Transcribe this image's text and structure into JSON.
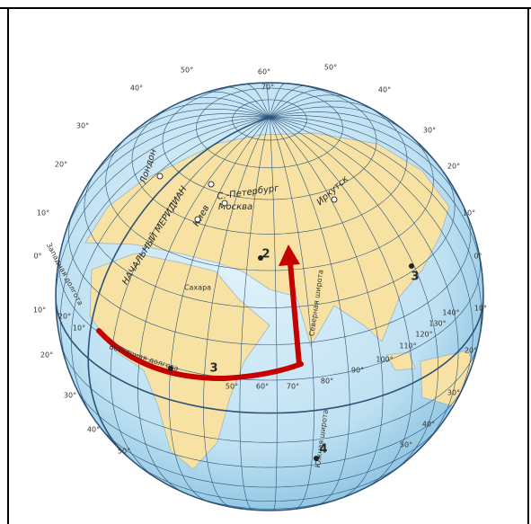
{
  "map": {
    "cities": [
      "Лондон",
      "С.-Петербург",
      "Москва",
      "Киев",
      "Иркутск"
    ],
    "meridian_label": "НАЧАЛЬНЫЙ МЕРИДИАН",
    "region_labels": [
      "Западная долгота",
      "Восточная долгота",
      "Северная широта",
      "Южная широта",
      "Сахара"
    ],
    "points": [
      "2",
      "3",
      "3",
      "4"
    ],
    "degree_labels": [
      "40°",
      "30°",
      "20°",
      "10°",
      "0°",
      "10°",
      "20°",
      "30°",
      "40°",
      "50°",
      "40°",
      "30°",
      "20°",
      "10°",
      "0°",
      "10°",
      "20°",
      "30°",
      "40°",
      "50°",
      "50°",
      "60°",
      "50°",
      "70°",
      "20°",
      "10°",
      "50°",
      "60°",
      "70°",
      "80°",
      "90°",
      "100°",
      "110°",
      "120°",
      "130°",
      "140°"
    ]
  }
}
